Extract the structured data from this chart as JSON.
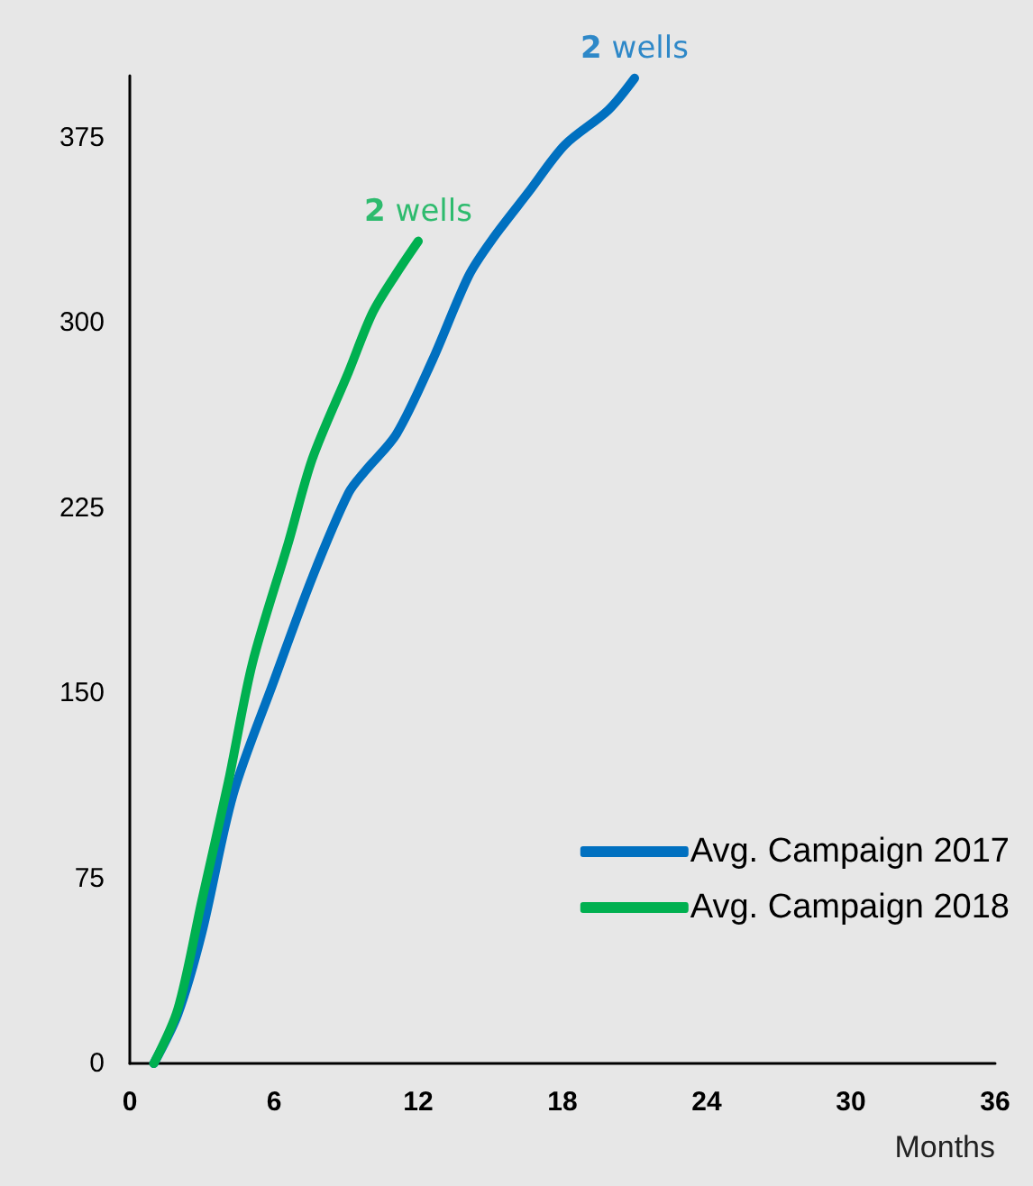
{
  "chart_data": {
    "type": "line",
    "xlabel": "Months",
    "xlim": [
      0,
      36
    ],
    "xticks": [
      0,
      6,
      12,
      18,
      24,
      30,
      36
    ],
    "ylim": [
      0,
      400
    ],
    "yticks": [
      0,
      75,
      150,
      225,
      300,
      375
    ],
    "grid": false,
    "legend": "bottom right",
    "marker": "none",
    "line_style": "solid",
    "series": [
      {
        "name": "Avg. Campaign 2017",
        "color": "#0070c0",
        "x": [
          1,
          2,
          3,
          4.3,
          6,
          7.6,
          9.1,
          9.8,
          11.1,
          12.6,
          14.1,
          15.1,
          16.6,
          18.1,
          19.9,
          21
        ],
        "values": [
          0,
          20,
          53,
          109,
          155,
          197,
          231,
          240,
          255,
          285,
          319,
          334,
          353,
          372,
          386,
          399
        ]
      },
      {
        "name": "Avg. Campaign 2018",
        "color": "#00b050",
        "x": [
          1,
          2,
          3,
          4.1,
          5.1,
          6.6,
          7.6,
          9.1,
          10.1,
          11.1,
          12
        ],
        "values": [
          0,
          22,
          66,
          114,
          162,
          211,
          245,
          280,
          304,
          320,
          333
        ]
      }
    ],
    "annotations": [
      {
        "text": "2 wells",
        "x": 21,
        "y": 399
      },
      {
        "text": "2 wells",
        "x": 12,
        "y": 333
      }
    ]
  }
}
